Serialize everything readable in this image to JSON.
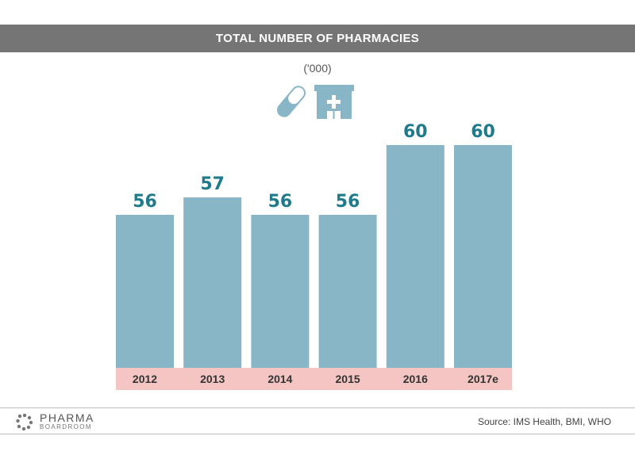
{
  "header": {
    "title": "TOTAL NUMBER OF PHARMACIES"
  },
  "subtitle": "('000)",
  "icons": [
    "pill-icon",
    "pharmacy-building-icon"
  ],
  "colors": {
    "bar": "#88b6c6",
    "category_band": "#f4c5c2",
    "value_label": "#1f7a8c",
    "title_bar": "#757575"
  },
  "chart_data": {
    "type": "bar",
    "title": "TOTAL NUMBER OF PHARMACIES",
    "subtitle": "('000)",
    "categories": [
      "2012",
      "2013",
      "2014",
      "2015",
      "2016",
      "2017e"
    ],
    "values": [
      56,
      57,
      56,
      56,
      60,
      60
    ],
    "data_labels": [
      "56",
      "57",
      "56",
      "56",
      "60",
      "60"
    ],
    "xlabel": "",
    "ylabel": "",
    "grid": false
  },
  "footer": {
    "logo_main": "PHARMA",
    "logo_sub": "BOARDROOM",
    "source": "Source:  IMS Health, BMI, WHO"
  }
}
